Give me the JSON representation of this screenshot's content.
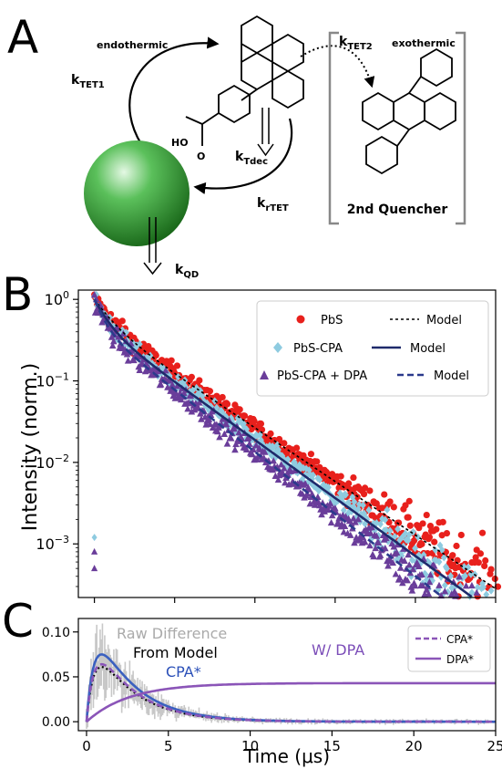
{
  "panels": {
    "a": "A",
    "b": "B",
    "c": "C"
  },
  "schematic": {
    "endothermic": "endothermic",
    "exothermic": "exothermic",
    "k_tet1": {
      "main": "k",
      "sub": "TET1"
    },
    "k_tet2": {
      "main": "k",
      "sub": "TET2"
    },
    "k_tdec": {
      "main": "k",
      "sub": "Tdec"
    },
    "k_rtet": {
      "main": "k",
      "sub": "rTET"
    },
    "k_qd": {
      "main": "k",
      "sub": "QD"
    },
    "quencher_label": "2nd Quencher",
    "ho": "HO",
    "o": "O",
    "colors": {
      "qd_light": "#d8f5d8",
      "qd_mid": "#3cb043",
      "qd_dark": "#1e6b1e",
      "bracket": "#888888"
    }
  },
  "chart_data": [
    {
      "type": "scatter",
      "panel": "B",
      "ylabel": "Intensity (norm.)",
      "yscale": "log",
      "xlim": [
        -1,
        25
      ],
      "ylim": [
        0.00022,
        1.3
      ],
      "yticks": [
        {
          "value": 1,
          "base": "10",
          "exp": "0"
        },
        {
          "value": 0.1,
          "base": "10",
          "exp": "−1"
        },
        {
          "value": 0.01,
          "base": "10",
          "exp": "−2"
        },
        {
          "value": 0.001,
          "base": "10",
          "exp": "−3"
        }
      ],
      "legend_position": "top-right",
      "legend": [
        {
          "marker_label": "PbS",
          "line_label": "Model"
        },
        {
          "marker_label": "PbS-CPA",
          "line_label": "Model"
        },
        {
          "marker_label": "PbS-CPA + DPA",
          "line_label": "Model"
        }
      ],
      "series": [
        {
          "name": "PbS",
          "marker": "circle",
          "color": "#e8201c",
          "tau_ns": [
            1.0,
            3.3
          ],
          "amps": [
            0.45,
            0.55
          ],
          "noise": 0.12
        },
        {
          "name": "PbS-CPA",
          "marker": "diamond",
          "color": "#8ecbe0",
          "tau_ns": [
            0.75,
            3.05
          ],
          "amps": [
            0.5,
            0.5
          ],
          "noise": 0.12
        },
        {
          "name": "PbS-CPA + DPA",
          "marker": "triangle",
          "color": "#6a3d9a",
          "tau_ns": [
            0.6,
            2.85
          ],
          "amps": [
            0.55,
            0.45
          ],
          "noise": 0.14
        }
      ],
      "models": [
        {
          "name": "Model",
          "ref": "PbS",
          "style": "dotted",
          "color": "#000000"
        },
        {
          "name": "Model",
          "ref": "PbS-CPA",
          "style": "solid",
          "color": "#1f2a6b"
        },
        {
          "name": "Model",
          "ref": "PbS-CPA + DPA",
          "style": "dashed",
          "color": "#2b3a8c"
        }
      ]
    },
    {
      "type": "line",
      "panel": "C",
      "xlabel": "Time (μs)",
      "xlim": [
        -0.5,
        25
      ],
      "ylim": [
        -0.01,
        0.115
      ],
      "xticks": [
        0,
        5,
        10,
        15,
        20,
        25
      ],
      "yticks": [
        0.0,
        0.05,
        0.1
      ],
      "ytick_labels": [
        "0.00",
        "0.05",
        "0.10"
      ],
      "legend_position": "top-right",
      "annotations": [
        {
          "text": "Raw Difference",
          "color": "#aaaaaa"
        },
        {
          "text": "From Model",
          "color": "#000000"
        },
        {
          "text": "CPA*",
          "color": "#2b50b8"
        },
        {
          "text": "W/ DPA",
          "color": "#7b4db8"
        }
      ],
      "legend": [
        {
          "label": "CPA*",
          "style": "dashed",
          "color": "#8b55b8"
        },
        {
          "label": "DPA*",
          "style": "solid",
          "color": "#8b55b8"
        }
      ],
      "series": [
        {
          "name": "Raw Difference",
          "kind": "band",
          "color": "#c8c8c8",
          "peak": 0.065,
          "t_peak": 1.5
        },
        {
          "name": "From Model",
          "kind": "line",
          "style": "dotted",
          "color": "#000000",
          "peak": 0.061,
          "t_peak": 1.5
        },
        {
          "name": "CPA*",
          "kind": "line",
          "style": "solid",
          "color": "#3a60c0",
          "peak": 0.075,
          "t_peak": 1.6
        },
        {
          "name": "CPA* (W/ DPA)",
          "kind": "line",
          "style": "dashed",
          "color": "#8b55b8",
          "peak": 0.064,
          "t_peak": 1.4
        },
        {
          "name": "DPA*",
          "kind": "rise",
          "style": "solid",
          "color": "#8b55b8",
          "plateau": 0.043
        }
      ]
    }
  ]
}
